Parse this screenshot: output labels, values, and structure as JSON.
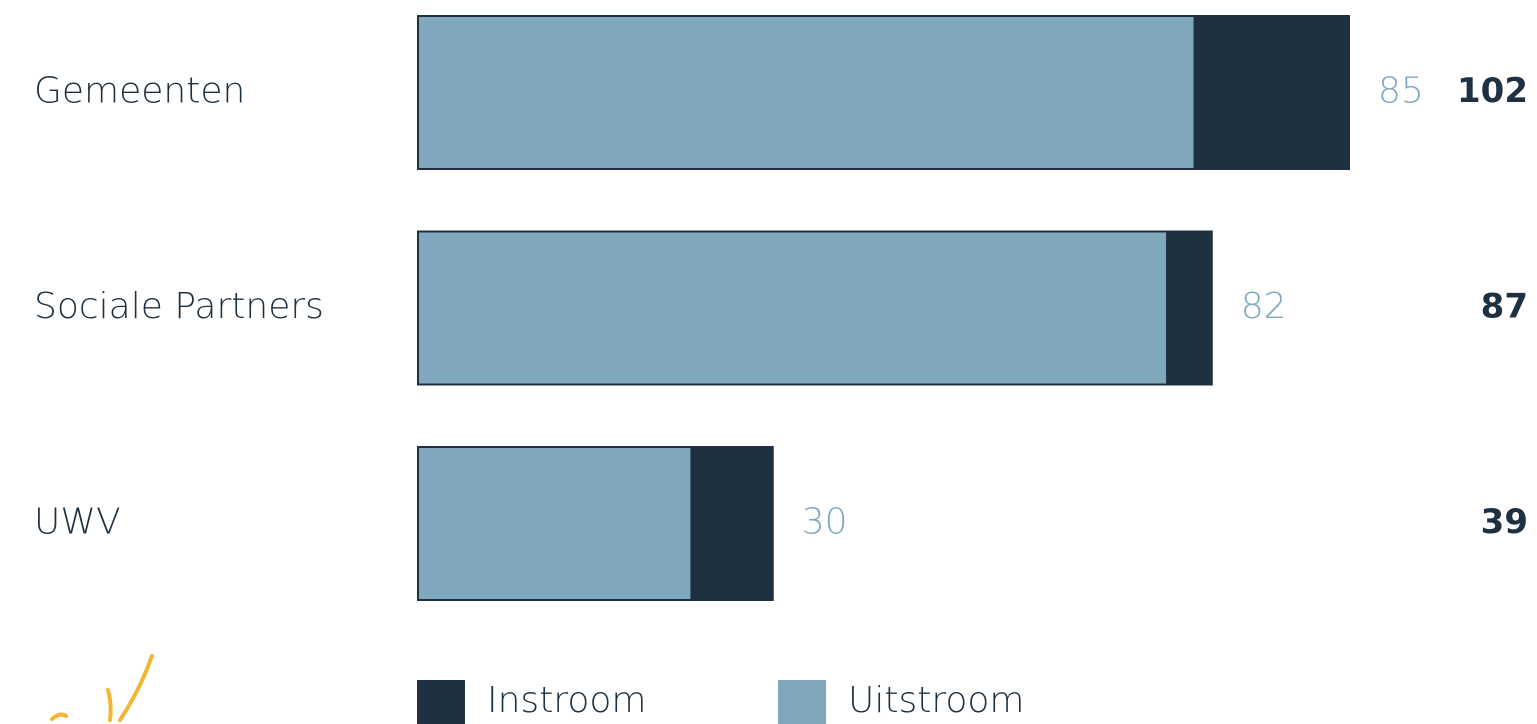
{
  "chart_data": {
    "type": "bar",
    "orientation": "horizontal",
    "overlap": true,
    "categories": [
      "Gemeenten",
      "Sociale Partners",
      "UWV"
    ],
    "series": [
      {
        "name": "Instroom",
        "color": "#1f3040",
        "values": [
          102,
          87,
          39
        ]
      },
      {
        "name": "Uitstroom",
        "color": "#80a8bd",
        "values": [
          85,
          82,
          30
        ]
      }
    ]
  }
}
